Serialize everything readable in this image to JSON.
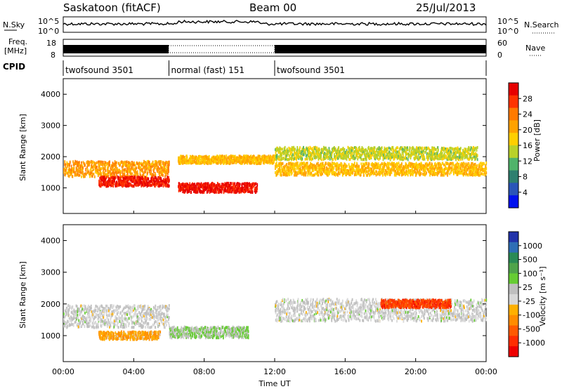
{
  "header": {
    "station": "Saskatoon (fitACF)",
    "beam": "Beam 00",
    "date": "25/Jul/2013"
  },
  "sky_panel": {
    "left_label": "N.Sky",
    "right_label": "N.Search",
    "left_ticks": [
      "10^5",
      "10^0"
    ],
    "right_ticks": [
      "10^5",
      "10^0"
    ]
  },
  "freq_panel": {
    "left_label": "Freq.",
    "left_unit": "[MHz]",
    "left_ticks": [
      "18",
      "8"
    ],
    "right_label": "Nave",
    "right_ticks": [
      "60",
      "0"
    ]
  },
  "cpid": {
    "label": "CPID",
    "segments": [
      {
        "name": "twofsound 3501",
        "start_hour": 0,
        "end_hour": 6
      },
      {
        "name": "normal (fast) 151",
        "start_hour": 6,
        "end_hour": 12
      },
      {
        "name": "twofsound 3501",
        "start_hour": 12,
        "end_hour": 24
      }
    ]
  },
  "power_panel": {
    "ylabel": "Slant Range [km]",
    "cbar_label": "Power [dB]",
    "cbar_ticks": [
      "28",
      "24",
      "20",
      "16",
      "12",
      "8",
      "4"
    ],
    "cbar_colors": [
      "#e60000",
      "#ff3300",
      "#ff7a00",
      "#ffa200",
      "#ffcf00",
      "#b9d12a",
      "#50b36b",
      "#2e7f6f",
      "#2a55b8",
      "#0011ee"
    ]
  },
  "velocity_panel": {
    "ylabel": "Slant Range [km]",
    "cbar_label": "Velocity [m s⁻¹]",
    "cbar_ticks": [
      "1000",
      "500",
      "100",
      "25",
      "-25",
      "-100",
      "-500",
      "-1000"
    ],
    "cbar_colors": [
      "#2233aa",
      "#2e6eb5",
      "#2a8a55",
      "#4fa34a",
      "#66cc33",
      "#bfbfbf",
      "#d8d8d8",
      "#ffb000",
      "#ff8c00",
      "#ff5a00",
      "#ff2d00",
      "#ee0000"
    ]
  },
  "x_axis": {
    "label": "Time UT",
    "ticks": [
      "00:00",
      "04:00",
      "08:00",
      "12:00",
      "16:00",
      "20:00",
      "00:00"
    ]
  },
  "chart_data": [
    {
      "type": "heatmap",
      "title": "Power",
      "xlabel": "Time UT",
      "ylabel": "Slant Range [km]",
      "x_range_hours": [
        0,
        24
      ],
      "ylim": [
        180,
        4500
      ],
      "y_ticks": [
        1000,
        2000,
        3000,
        4000
      ],
      "zlim": [
        0,
        30
      ],
      "z_units": "dB",
      "scatter_bands": [
        {
          "t_start": 0,
          "t_end": 6,
          "range_center": 1600,
          "width": 500,
          "value": 20
        },
        {
          "t_start": 2,
          "t_end": 6,
          "range_center": 1200,
          "width": 300,
          "value": 27
        },
        {
          "t_start": 6.5,
          "t_end": 11,
          "range_center": 1000,
          "width": 300,
          "value": 28
        },
        {
          "t_start": 6.5,
          "t_end": 12,
          "range_center": 1900,
          "width": 250,
          "value": 18
        },
        {
          "t_start": 12,
          "t_end": 24,
          "range_center": 1600,
          "width": 400,
          "value": 18
        },
        {
          "t_start": 12,
          "t_end": 23.5,
          "range_center": 2100,
          "width": 400,
          "value": 14
        }
      ]
    },
    {
      "type": "heatmap",
      "title": "Velocity",
      "xlabel": "Time UT",
      "ylabel": "Slant Range [km]",
      "x_range_hours": [
        0,
        24
      ],
      "ylim": [
        180,
        4500
      ],
      "y_ticks": [
        1000,
        2000,
        3000,
        4000
      ],
      "zlim": [
        -1000,
        1000
      ],
      "z_units": "m s-1",
      "scatter_bands": [
        {
          "t_start": 0,
          "t_end": 6,
          "range_center": 1600,
          "width": 700,
          "value": 0
        },
        {
          "t_start": 2,
          "t_end": 5.5,
          "range_center": 1000,
          "width": 250,
          "value": -300
        },
        {
          "t_start": 6,
          "t_end": 10.5,
          "range_center": 1100,
          "width": 350,
          "value": 150
        },
        {
          "t_start": 12,
          "t_end": 24,
          "range_center": 1800,
          "width": 700,
          "value": 0
        },
        {
          "t_start": 18,
          "t_end": 22,
          "range_center": 2000,
          "width": 250,
          "value": -700
        }
      ]
    }
  ]
}
